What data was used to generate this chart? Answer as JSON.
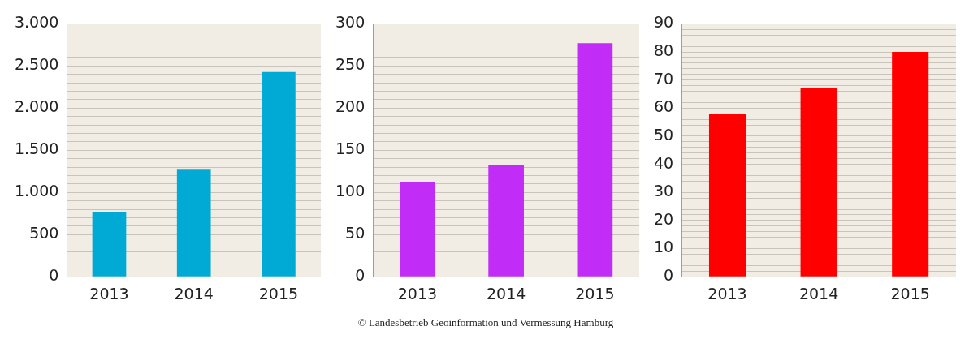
{
  "chart_data": [
    {
      "type": "bar",
      "categories": [
        "2013",
        "2014",
        "2015"
      ],
      "values": [
        770,
        1280,
        2430
      ],
      "color": "#00aad4",
      "ylim": [
        0,
        3000
      ],
      "yticks": [
        0,
        {
          "value": 100,
          "label": null
        },
        {
          "value": 200,
          "label": null
        },
        {
          "value": 300,
          "label": null
        },
        {
          "value": 400,
          "label": null
        },
        500,
        {
          "value": 600,
          "label": null
        },
        {
          "value": 700,
          "label": null
        },
        {
          "value": 800,
          "label": null
        },
        {
          "value": 900,
          "label": null
        },
        {
          "value": 1000,
          "label": "1.000"
        },
        {
          "value": 1100,
          "label": null
        },
        {
          "value": 1200,
          "label": null
        },
        {
          "value": 1300,
          "label": null
        },
        {
          "value": 1400,
          "label": null
        },
        {
          "value": 1500,
          "label": "1.500"
        },
        {
          "value": 1600,
          "label": null
        },
        {
          "value": 1700,
          "label": null
        },
        {
          "value": 1800,
          "label": null
        },
        {
          "value": 1900,
          "label": null
        },
        {
          "value": 2000,
          "label": "2.000"
        },
        {
          "value": 2100,
          "label": null
        },
        {
          "value": 2200,
          "label": null
        },
        {
          "value": 2300,
          "label": null
        },
        {
          "value": 2400,
          "label": null
        },
        {
          "value": 2500,
          "label": "2.500"
        },
        {
          "value": 2600,
          "label": null
        },
        {
          "value": 2700,
          "label": null
        },
        {
          "value": 2800,
          "label": null
        },
        {
          "value": 2900,
          "label": null
        },
        {
          "value": 3000,
          "label": "3.000"
        }
      ],
      "grid": "y"
    },
    {
      "type": "bar",
      "categories": [
        "2013",
        "2014",
        "2015"
      ],
      "values": [
        112,
        133,
        277
      ],
      "color": "#c12df7",
      "ylim": [
        0,
        300
      ],
      "yticks": [
        0,
        {
          "value": 10,
          "label": null
        },
        {
          "value": 20,
          "label": null
        },
        {
          "value": 30,
          "label": null
        },
        {
          "value": 40,
          "label": null
        },
        50,
        {
          "value": 60,
          "label": null
        },
        {
          "value": 70,
          "label": null
        },
        {
          "value": 80,
          "label": null
        },
        {
          "value": 90,
          "label": null
        },
        100,
        {
          "value": 110,
          "label": null
        },
        {
          "value": 120,
          "label": null
        },
        {
          "value": 130,
          "label": null
        },
        {
          "value": 140,
          "label": null
        },
        150,
        {
          "value": 160,
          "label": null
        },
        {
          "value": 170,
          "label": null
        },
        {
          "value": 180,
          "label": null
        },
        {
          "value": 190,
          "label": null
        },
        200,
        {
          "value": 210,
          "label": null
        },
        {
          "value": 220,
          "label": null
        },
        {
          "value": 230,
          "label": null
        },
        {
          "value": 240,
          "label": null
        },
        250,
        {
          "value": 260,
          "label": null
        },
        {
          "value": 270,
          "label": null
        },
        {
          "value": 280,
          "label": null
        },
        {
          "value": 290,
          "label": null
        },
        300
      ],
      "grid": "y"
    },
    {
      "type": "bar",
      "categories": [
        "2013",
        "2014",
        "2015"
      ],
      "values": [
        58,
        67,
        80
      ],
      "color": "#ff0000",
      "ylim": [
        0,
        90
      ],
      "yticks": [
        0,
        {
          "value": 2,
          "label": null
        },
        {
          "value": 4,
          "label": null
        },
        {
          "value": 6,
          "label": null
        },
        {
          "value": 8,
          "label": null
        },
        10,
        {
          "value": 12,
          "label": null
        },
        {
          "value": 14,
          "label": null
        },
        {
          "value": 16,
          "label": null
        },
        {
          "value": 18,
          "label": null
        },
        20,
        {
          "value": 22,
          "label": null
        },
        {
          "value": 24,
          "label": null
        },
        {
          "value": 26,
          "label": null
        },
        {
          "value": 28,
          "label": null
        },
        30,
        {
          "value": 32,
          "label": null
        },
        {
          "value": 34,
          "label": null
        },
        {
          "value": 36,
          "label": null
        },
        {
          "value": 38,
          "label": null
        },
        40,
        {
          "value": 42,
          "label": null
        },
        {
          "value": 44,
          "label": null
        },
        {
          "value": 46,
          "label": null
        },
        {
          "value": 48,
          "label": null
        },
        50,
        {
          "value": 52,
          "label": null
        },
        {
          "value": 54,
          "label": null
        },
        {
          "value": 56,
          "label": null
        },
        {
          "value": 58,
          "label": null
        },
        60,
        {
          "value": 62,
          "label": null
        },
        {
          "value": 64,
          "label": null
        },
        {
          "value": 66,
          "label": null
        },
        {
          "value": 68,
          "label": null
        },
        70,
        {
          "value": 72,
          "label": null
        },
        {
          "value": 74,
          "label": null
        },
        {
          "value": 76,
          "label": null
        },
        {
          "value": 78,
          "label": null
        },
        80,
        {
          "value": 82,
          "label": null
        },
        {
          "value": 84,
          "label": null
        },
        {
          "value": 86,
          "label": null
        },
        {
          "value": 88,
          "label": null
        },
        90
      ],
      "grid": "y",
      "annotations": [
        "© Landesbetrieb Geoinformation und Vermessung Hamburg"
      ]
    }
  ]
}
